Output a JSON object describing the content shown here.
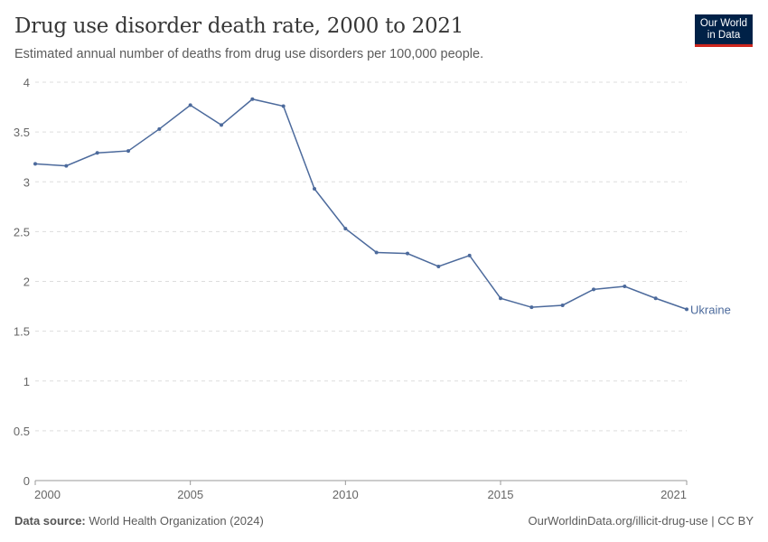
{
  "title": "Drug use disorder death rate, 2000 to 2021",
  "subtitle": "Estimated annual number of deaths from drug use disorders per 100,000 people.",
  "logo": {
    "line1": "Our World",
    "line2": "in Data"
  },
  "footer": {
    "source_label": "Data source:",
    "source": "World Health Organization (2024)",
    "link": "OurWorldinData.org/illicit-drug-use | CC BY"
  },
  "colors": {
    "series": "#4c6a9c",
    "grid": "#dddddd",
    "logo_bg": "#002147",
    "logo_accent": "#ce261e"
  },
  "chart_data": {
    "type": "line",
    "title": "Drug use disorder death rate, 2000 to 2021",
    "xlabel": "",
    "ylabel": "",
    "ylim": [
      0,
      4
    ],
    "xlim": [
      2000,
      2021
    ],
    "yticks": [
      0,
      0.5,
      1,
      1.5,
      2,
      2.5,
      3,
      3.5,
      4
    ],
    "ytick_labels": [
      "0",
      "0.5",
      "1",
      "1.5",
      "2",
      "2.5",
      "3",
      "3.5",
      "4"
    ],
    "xticks": [
      2000,
      2005,
      2010,
      2015,
      2021
    ],
    "xtick_labels": [
      "2000",
      "2005",
      "2010",
      "2015",
      "2021"
    ],
    "grid": "horizontal dashed",
    "series": [
      {
        "name": "Ukraine",
        "x": [
          2000,
          2001,
          2002,
          2003,
          2004,
          2005,
          2006,
          2007,
          2008,
          2009,
          2010,
          2011,
          2012,
          2013,
          2014,
          2015,
          2016,
          2017,
          2018,
          2019,
          2020,
          2021
        ],
        "values": [
          3.18,
          3.16,
          3.29,
          3.31,
          3.53,
          3.77,
          3.57,
          3.83,
          3.76,
          2.93,
          2.53,
          2.29,
          2.28,
          2.15,
          2.26,
          1.83,
          1.74,
          1.76,
          1.92,
          1.95,
          1.83,
          1.72
        ]
      }
    ]
  }
}
